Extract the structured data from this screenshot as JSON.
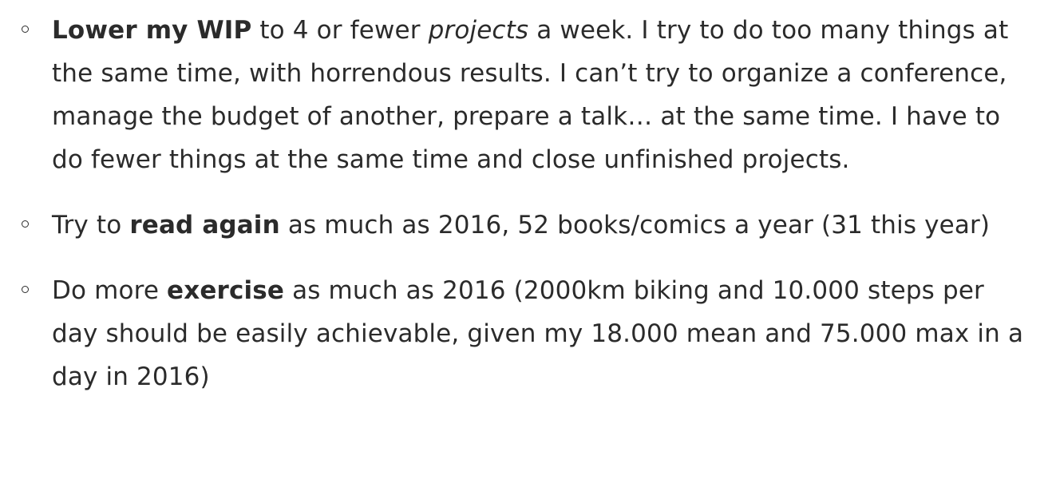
{
  "goals": [
    {
      "bold": "Lower my WIP",
      "text1": " to 4 or fewer ",
      "italic": "projects",
      "text2": " a week. I try to do too many things at the same time, with horrendous results. I can’t try to organize a conference, manage the budget of another, prepare a talk… at the same time. I have to do fewer things at the same time and close unfinished projects."
    },
    {
      "before": "Try to ",
      "bold": "read again",
      "after": " as much as 2016, 52 books/comics a year (31 this year)"
    },
    {
      "before": "Do more ",
      "bold": "exercise",
      "after": " as much as 2016 (2000km biking and 10.000 steps per day should be easily achievable, given my 18.000 mean and 75.000 max in a day in 2016)"
    }
  ]
}
